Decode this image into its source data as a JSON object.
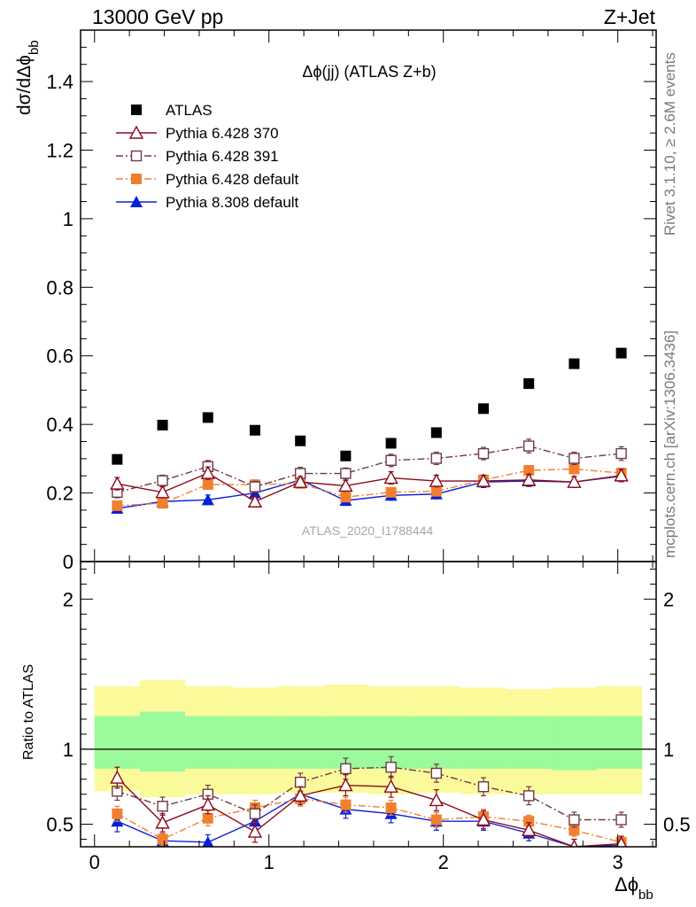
{
  "header": {
    "left": "13000 GeV pp",
    "right": "Z+Jet"
  },
  "side_labels": {
    "rivet": "Rivet 3.1.10, ≥ 2.6M events",
    "mcplots": "mcplots.cern.ch [arXiv:1306.3436]"
  },
  "chart_data": [
    {
      "type": "scatter",
      "panel": "main",
      "title": "Δϕ(jj) (ATLAS Z+b)",
      "watermark": "ATLAS_2020_I1788444",
      "ylabel": "dσ/dΔϕ",
      "ylabel_sub": "bb",
      "xlim": [
        -0.08,
        3.22
      ],
      "ylim": [
        0,
        1.55
      ],
      "yticks": [
        0,
        0.2,
        0.4,
        0.6,
        0.8,
        1,
        1.2,
        1.4
      ],
      "ytick_labels": [
        "0",
        "0.2",
        "0.4",
        "0.6",
        "0.8",
        "1",
        "1.2",
        "1.4"
      ],
      "legend_position": "top-left",
      "x": [
        0.13,
        0.39,
        0.65,
        0.92,
        1.18,
        1.44,
        1.7,
        1.96,
        2.23,
        2.49,
        2.75,
        3.02
      ],
      "series": [
        {
          "name": "ATLAS",
          "color": "#000000",
          "marker": "square-filled",
          "line": "none",
          "values": [
            0.298,
            0.398,
            0.42,
            0.383,
            0.352,
            0.308,
            0.345,
            0.376,
            0.446,
            0.519,
            0.577,
            0.608
          ],
          "errors": [
            0,
            0,
            0,
            0,
            0,
            0,
            0,
            0,
            0,
            0,
            0,
            0
          ]
        },
        {
          "name": "Pythia 6.428 370",
          "color": "#8b0a1a",
          "marker": "triangle-open",
          "line": "solid",
          "values": [
            0.227,
            0.202,
            0.258,
            0.175,
            0.232,
            0.221,
            0.244,
            0.235,
            0.235,
            0.238,
            0.232,
            0.251
          ],
          "errors": [
            0.018,
            0.016,
            0.018,
            0.016,
            0.016,
            0.016,
            0.018,
            0.017,
            0.017,
            0.017,
            0.016,
            0.018
          ]
        },
        {
          "name": "Pythia 6.428 391",
          "color": "#6e3a46",
          "marker": "square-open",
          "line": "dashdot",
          "values": [
            0.202,
            0.236,
            0.277,
            0.218,
            0.257,
            0.257,
            0.295,
            0.301,
            0.315,
            0.337,
            0.301,
            0.315
          ],
          "errors": [
            0.016,
            0.016,
            0.018,
            0.016,
            0.018,
            0.016,
            0.018,
            0.018,
            0.018,
            0.02,
            0.018,
            0.02
          ]
        },
        {
          "name": "Pythia 6.428 default",
          "color": "#f08030",
          "marker": "square-filled",
          "line": "dashdot",
          "values": [
            0.163,
            0.17,
            0.225,
            0.224,
            0.228,
            0.188,
            0.202,
            0.205,
            0.238,
            0.266,
            0.27,
            0.258
          ],
          "errors": [
            0.012,
            0.012,
            0.014,
            0.014,
            0.014,
            0.012,
            0.012,
            0.012,
            0.014,
            0.014,
            0.014,
            0.014
          ]
        },
        {
          "name": "Pythia 8.308 default",
          "color": "#0a20d8",
          "marker": "triangle-filled",
          "line": "solid",
          "values": [
            0.155,
            0.175,
            0.18,
            0.2,
            0.238,
            0.178,
            0.193,
            0.197,
            0.232,
            0.235,
            0.232,
            0.249
          ],
          "errors": [
            0.014,
            0.014,
            0.014,
            0.014,
            0.016,
            0.014,
            0.014,
            0.014,
            0.016,
            0.016,
            0.016,
            0.016
          ]
        }
      ]
    },
    {
      "type": "scatter",
      "panel": "ratio",
      "ylabel": "Ratio to ATLAS",
      "xlabel": "Δϕ",
      "xlabel_sub": "bb",
      "xlim": [
        -0.08,
        3.22
      ],
      "ylim": [
        0.35,
        2.25
      ],
      "xticks": [
        0,
        1,
        2,
        3
      ],
      "xtick_labels": [
        "0",
        "1",
        "2",
        "3"
      ],
      "yticks": [
        0.5,
        1,
        2
      ],
      "ytick_labels": [
        "0.5",
        "1",
        "2"
      ],
      "reference_line": 1,
      "bands": {
        "edges": [
          0.0,
          0.26,
          0.52,
          0.79,
          1.05,
          1.31,
          1.57,
          1.83,
          2.1,
          2.36,
          2.62,
          2.88,
          3.14
        ],
        "outer_color": "#fafa9a",
        "inner_color": "#9bfa9b",
        "outer_lo": [
          0.72,
          0.68,
          0.7,
          0.7,
          0.71,
          0.71,
          0.7,
          0.71,
          0.7,
          0.7,
          0.7,
          0.7
        ],
        "outer_hi": [
          1.42,
          1.46,
          1.42,
          1.41,
          1.42,
          1.43,
          1.42,
          1.42,
          1.41,
          1.4,
          1.41,
          1.42
        ],
        "inner_lo": [
          0.87,
          0.85,
          0.87,
          0.87,
          0.87,
          0.87,
          0.87,
          0.87,
          0.87,
          0.87,
          0.86,
          0.87
        ],
        "inner_hi": [
          1.22,
          1.25,
          1.22,
          1.22,
          1.22,
          1.22,
          1.22,
          1.22,
          1.22,
          1.22,
          1.22,
          1.22
        ]
      },
      "x": [
        0.13,
        0.39,
        0.65,
        0.92,
        1.18,
        1.44,
        1.7,
        1.96,
        2.23,
        2.49,
        2.75,
        3.02
      ],
      "series": [
        {
          "name": "Pythia 6.428 370",
          "color": "#8b0a1a",
          "marker": "triangle-open",
          "line": "solid",
          "values": [
            0.81,
            0.51,
            0.63,
            0.45,
            0.69,
            0.76,
            0.75,
            0.66,
            0.53,
            0.46,
            0.35,
            0.37
          ],
          "errors": [
            0.07,
            0.06,
            0.06,
            0.07,
            0.06,
            0.07,
            0.07,
            0.07,
            0.06,
            0.05,
            0.05,
            0.05
          ]
        },
        {
          "name": "Pythia 6.428 391",
          "color": "#6e3a46",
          "marker": "square-open",
          "line": "dashdot",
          "values": [
            0.72,
            0.62,
            0.7,
            0.57,
            0.78,
            0.87,
            0.88,
            0.84,
            0.75,
            0.69,
            0.53,
            0.53
          ],
          "errors": [
            0.06,
            0.06,
            0.06,
            0.06,
            0.06,
            0.07,
            0.07,
            0.06,
            0.06,
            0.06,
            0.05,
            0.05
          ]
        },
        {
          "name": "Pythia 6.428 default",
          "color": "#f08030",
          "marker": "square-filled",
          "line": "dashdot",
          "values": [
            0.57,
            0.4,
            0.54,
            0.61,
            0.67,
            0.63,
            0.61,
            0.53,
            0.55,
            0.52,
            0.46,
            0.38
          ],
          "errors": [
            0.05,
            0.04,
            0.05,
            0.05,
            0.05,
            0.05,
            0.05,
            0.05,
            0.05,
            0.04,
            0.04,
            0.04
          ]
        },
        {
          "name": "Pythia 8.308 default",
          "color": "#0a20d8",
          "marker": "triangle-filled",
          "line": "solid",
          "values": [
            0.52,
            0.39,
            0.38,
            0.52,
            0.7,
            0.6,
            0.57,
            0.52,
            0.52,
            0.44,
            0.35,
            0.36
          ],
          "errors": [
            0.07,
            0.05,
            0.05,
            0.05,
            0.06,
            0.06,
            0.06,
            0.06,
            0.06,
            0.05,
            0.05,
            0.05
          ]
        }
      ]
    }
  ]
}
